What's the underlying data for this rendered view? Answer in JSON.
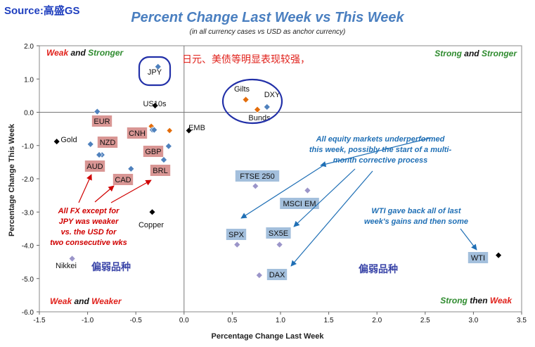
{
  "source": "Source:高盛GS",
  "chart_data": {
    "type": "scatter",
    "title": "Percent Change Last Week vs This Week",
    "subtitle": "(in all  currency cases vs  USD as anchor currency)",
    "xlabel": "Percentage Change Last Week",
    "ylabel": "Percentage Change This Week",
    "xlim": [
      -1.5,
      3.5
    ],
    "ylim": [
      -6.0,
      2.0
    ],
    "x_ticks": [
      "-1.5",
      "-1.0",
      "-0.5",
      "0.0",
      "0.5",
      "1.0",
      "1.5",
      "2.0",
      "2.5",
      "3.0",
      "3.5"
    ],
    "y_ticks": [
      "2.0",
      "1.0",
      "0.0",
      "-1.0",
      "-2.0",
      "-3.0",
      "-4.0",
      "-5.0",
      "-6.0"
    ],
    "grid": false,
    "points": [
      {
        "label": "JPY",
        "x": -0.27,
        "y": 1.37,
        "color": "#4f81bd"
      },
      {
        "label": "US10s",
        "x": -0.3,
        "y": 0.2,
        "color": "#000000"
      },
      {
        "label": "EMB",
        "x": 0.05,
        "y": -0.55,
        "color": "#000000"
      },
      {
        "label": "EUR",
        "x": -0.9,
        "y": 0.02,
        "color": "#4f81bd"
      },
      {
        "label": "CNH",
        "x": -0.31,
        "y": -0.53,
        "color": "#4f81bd"
      },
      {
        "label": "NZD",
        "x": -0.97,
        "y": -0.96,
        "color": "#4f81bd"
      },
      {
        "label": "GBP",
        "x": -0.16,
        "y": -1.02,
        "color": "#4f81bd"
      },
      {
        "label": "AUD",
        "x": -0.88,
        "y": -1.28,
        "color": "#4f81bd"
      },
      {
        "label": "CAD",
        "x": -0.55,
        "y": -1.7,
        "color": "#4f81bd"
      },
      {
        "label": "BRL",
        "x": -0.21,
        "y": -1.43,
        "color": "#4f81bd"
      },
      {
        "label": "Gold",
        "x": -1.32,
        "y": -0.88,
        "color": "#000000"
      },
      {
        "label": "Copper",
        "x": -0.33,
        "y": -3.0,
        "color": "#000000"
      },
      {
        "label": "Nikkei",
        "x": -1.16,
        "y": -4.4,
        "color": "#9b95c9"
      },
      {
        "label": "Gilts",
        "x": 0.64,
        "y": 0.38,
        "color": "#e36c0a"
      },
      {
        "label": "Bunds",
        "x": 0.76,
        "y": 0.08,
        "color": "#e36c0a"
      },
      {
        "label": "DXY",
        "x": 0.86,
        "y": 0.16,
        "color": "#4f81bd"
      },
      {
        "label": "FTSE 250",
        "x": 0.74,
        "y": -2.22,
        "color": "#9b95c9"
      },
      {
        "label": "MSCI EM",
        "x": 1.28,
        "y": -2.35,
        "color": "#9b95c9"
      },
      {
        "label": "SPX",
        "x": 0.55,
        "y": -3.98,
        "color": "#9b95c9"
      },
      {
        "label": "SX5E",
        "x": 0.99,
        "y": -3.98,
        "color": "#9b95c9"
      },
      {
        "label": "DAX",
        "x": 0.78,
        "y": -4.9,
        "color": "#9b95c9"
      },
      {
        "label": "WTI",
        "x": 3.26,
        "y": -4.3,
        "color": "#000000"
      }
    ],
    "extra_markers": [
      {
        "x": -0.34,
        "y": -0.42,
        "color": "#e36c0a"
      },
      {
        "x": -0.15,
        "y": -0.55,
        "color": "#e36c0a"
      },
      {
        "x": -0.33,
        "y": -0.53,
        "color": "#4f81bd"
      },
      {
        "x": -0.32,
        "y": -1.13,
        "color": "#4f81bd"
      },
      {
        "x": -0.85,
        "y": -1.28,
        "color": "#4f81bd"
      }
    ],
    "quadrant_labels": [
      {
        "id": "top-left",
        "parts": [
          {
            "text": "Weak",
            "color": "#e0201a"
          },
          {
            "text": " and ",
            "color": "#111111"
          },
          {
            "text": "Stronger",
            "color": "#2e8b2e"
          }
        ]
      },
      {
        "id": "top-right",
        "parts": [
          {
            "text": "Strong",
            "color": "#2e8b2e"
          },
          {
            "text": " and ",
            "color": "#111111"
          },
          {
            "text": "Stronger",
            "color": "#2e8b2e"
          }
        ]
      },
      {
        "id": "bottom-left",
        "parts": [
          {
            "text": "Weak",
            "color": "#e0201a"
          },
          {
            "text": " and ",
            "color": "#111111"
          },
          {
            "text": "Weaker",
            "color": "#e0201a"
          }
        ]
      },
      {
        "id": "bottom-right",
        "parts": [
          {
            "text": "Strong",
            "color": "#2e8b2e"
          },
          {
            "text": " then ",
            "color": "#111111"
          },
          {
            "text": "Weak",
            "color": "#e0201a"
          }
        ]
      }
    ],
    "annotations": {
      "cn_top": "日元、美债等明显表现较强，",
      "cn_weak_left": "偏弱品种",
      "cn_weak_right": "偏弱品种",
      "fx_note": [
        "All FX except for",
        "JPY was weaker",
        "vs. the USD for",
        "two consecutive wks"
      ],
      "equity_note": [
        "All equity markets underperformed",
        "this week, possibly the start of a multi-",
        "month corrective process"
      ],
      "wti_note": [
        "WTI gave back all of last",
        "week's gains and then some"
      ]
    },
    "colors": {
      "title": "#4a7fc0",
      "red_label_fill": "#d99694",
      "blue_label_fill": "#a3bfdc",
      "note_red": "#d00000",
      "note_blue": "#1f6fb5",
      "cn_red": "#e0201a",
      "cn_blue": "#3a45a8",
      "circle": "#2230a8"
    }
  }
}
